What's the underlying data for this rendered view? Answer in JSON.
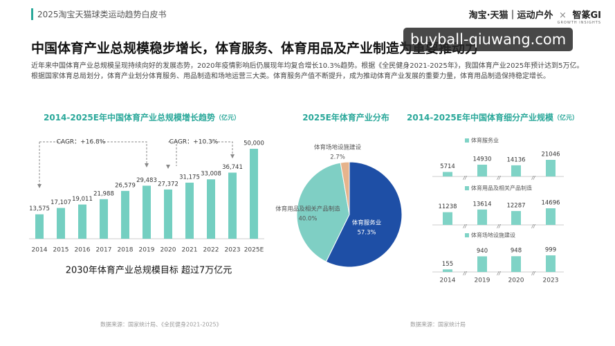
{
  "header": {
    "report": "2025淘宝天猫球类运动趋势白皮书",
    "brand": "淘宝·天猫｜运动户外",
    "cross": "×",
    "partner": "智篆GI",
    "partner_sub": "GROWTH INSIGHTS"
  },
  "title": "中国体育产业总规模稳步增长，体育服务、体育用品及产业制造为重要推动力",
  "intro": "近年来中国体育产业总规模呈现持续向好的发展态势，2020年疫情影响后仍展现年均复合增长10.3%趋势。根据《全民健身2021-2025年》，我国体育产业2025年预计达到5万亿。根据国家体育总局划分，体育产业划分体育服务、用品制造和场地运营三大类。体育服务产值不断提升，成为推动体育产业发展的重要力量，体育用品制造保持稳定增长。",
  "watermark": "buyball-qiuwang.com",
  "chart_data": [
    {
      "type": "bar",
      "title": "2014-2025E年中国体育产业总规模增长趋势",
      "unit": "（亿元）",
      "categories": [
        "2014",
        "2015",
        "2016",
        "2017",
        "2018",
        "2019",
        "2020",
        "2021",
        "2022",
        "2023",
        "2025E"
      ],
      "values": [
        13575,
        17107,
        19011,
        21988,
        26579,
        29483,
        27372,
        31175,
        33008,
        36741,
        50000
      ],
      "value_labels": [
        "13,575",
        "17,107",
        "19,011",
        "21,988",
        "26,579",
        "29,483",
        "27,372",
        "31,175",
        "33,008",
        "36,741",
        "50,000"
      ],
      "color": "#74cfc1",
      "annotations": [
        "CAGR：+16.8%",
        "CAGR：+10.3%"
      ],
      "note": "2030年体育产业总规模目标 超过7万亿元",
      "source": "数据来源：国家统计局、《全民健身2021-2025》"
    },
    {
      "type": "pie",
      "title": "2025E年体育产业分布",
      "categories": [
        "体育服务业",
        "体育用品及相关产品制造",
        "体育场地设施建设"
      ],
      "values": [
        57.3,
        40.0,
        2.7
      ],
      "value_labels": [
        "57.3%",
        "40.0%",
        "2.7%"
      ],
      "colors": [
        "#1e4fa6",
        "#7fcfc4",
        "#e6b48c"
      ]
    },
    {
      "type": "bar",
      "title": "2014-2025E年中国体育细分产业规模",
      "unit": "（亿元）",
      "categories": [
        "2014",
        "2019",
        "2020",
        "2023"
      ],
      "series": [
        {
          "name": "体育服务业",
          "color": "#7fd3c6",
          "values": [
            5714,
            14930,
            14136,
            21046
          ]
        },
        {
          "name": "体育用品及相关产品制造",
          "color": "#7fd3c6",
          "values": [
            11238,
            13614,
            12287,
            14696
          ]
        },
        {
          "name": "体育场地设施建设",
          "color": "#7fd3c6",
          "values": [
            155,
            940,
            948,
            999
          ]
        }
      ],
      "source": "数据来源：国家统计局"
    }
  ]
}
